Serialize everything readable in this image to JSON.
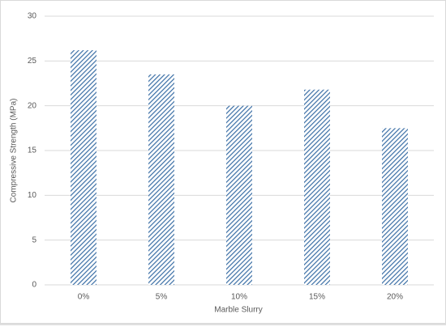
{
  "chart_data": {
    "type": "bar",
    "x_label": "Marble Slurry",
    "y_label": "Compressive Strength (MPa)",
    "categories": [
      "0%",
      "5%",
      "10%",
      "15%",
      "20%"
    ],
    "values": [
      26.2,
      23.5,
      20.0,
      21.8,
      17.5
    ],
    "color": "#3a6ea5",
    "ylim": [
      0,
      30
    ],
    "yticks": [
      0,
      5,
      10,
      15,
      20,
      25,
      30
    ],
    "grid": true
  }
}
